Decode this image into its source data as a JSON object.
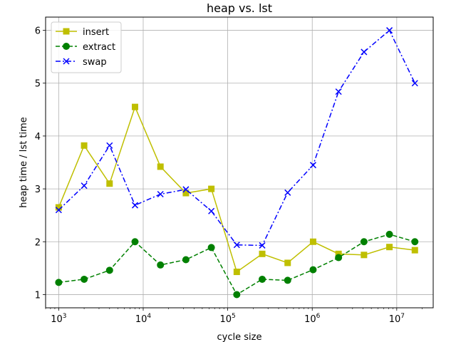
{
  "chart_data": {
    "type": "line",
    "title": "heap vs. lst",
    "xlabel": "cycle size",
    "ylabel": "heap time / lst time",
    "xscale": "log",
    "xlim": [
      700,
      27000000
    ],
    "ylim": [
      0.75,
      6.25
    ],
    "grid": true,
    "legend_position": "top-left",
    "x": [
      1000,
      2000,
      4000,
      8000,
      16000,
      32000,
      64000,
      128000,
      256000,
      512000,
      1024000,
      2048000,
      4096000,
      8192000,
      16384000
    ],
    "x_ticks": [
      {
        "value": 1000,
        "base": "10",
        "exp": "3"
      },
      {
        "value": 10000,
        "base": "10",
        "exp": "4"
      },
      {
        "value": 100000,
        "base": "10",
        "exp": "5"
      },
      {
        "value": 1000000,
        "base": "10",
        "exp": "6"
      },
      {
        "value": 10000000,
        "base": "10",
        "exp": "7"
      }
    ],
    "y_ticks": [
      1,
      2,
      3,
      4,
      5,
      6
    ],
    "series": [
      {
        "name": "insert",
        "color": "#bfbf00",
        "linestyle": "solid",
        "marker": "square",
        "values": [
          2.65,
          3.82,
          3.1,
          4.55,
          3.42,
          2.92,
          3.0,
          1.43,
          1.77,
          1.6,
          2.0,
          1.77,
          1.75,
          1.9,
          1.84
        ]
      },
      {
        "name": "extract",
        "color": "#008000",
        "linestyle": "dashed",
        "marker": "circle",
        "values": [
          1.23,
          1.29,
          1.46,
          2.0,
          1.56,
          1.66,
          1.89,
          1.0,
          1.29,
          1.27,
          1.47,
          1.7,
          2.0,
          2.14,
          2.0
        ]
      },
      {
        "name": "swap",
        "color": "#0000ff",
        "linestyle": "dashdot",
        "marker": "x",
        "values": [
          2.6,
          3.06,
          3.82,
          2.69,
          2.9,
          2.99,
          2.58,
          1.94,
          1.93,
          2.93,
          3.45,
          4.84,
          5.59,
          6.0,
          5.0
        ]
      }
    ]
  }
}
